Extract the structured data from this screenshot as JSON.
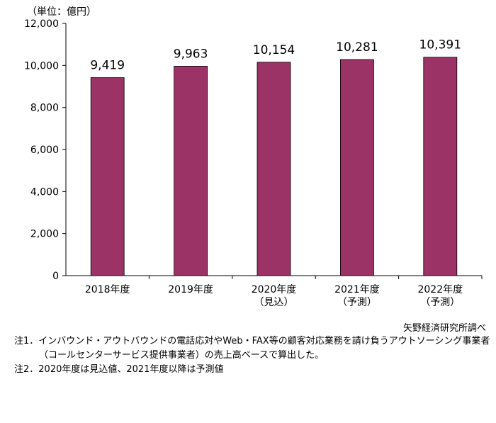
{
  "chart_data": {
    "type": "bar",
    "unit_label": "（単位：億円）",
    "categories": [
      [
        "2018年度"
      ],
      [
        "2019年度"
      ],
      [
        "2020年度",
        "（見込）"
      ],
      [
        "2021年度",
        "（予測）"
      ],
      [
        "2022年度",
        "（予測）"
      ]
    ],
    "values": [
      9419,
      9963,
      10154,
      10281,
      10391
    ],
    "value_labels": [
      "9,419",
      "9,963",
      "10,154",
      "10,281",
      "10,391"
    ],
    "ylim": [
      0,
      12000
    ],
    "yticks": [
      0,
      2000,
      4000,
      6000,
      8000,
      10000,
      12000
    ],
    "ytick_labels": [
      "0",
      "2,000",
      "4,000",
      "6,000",
      "8,000",
      "10,000",
      "12,000"
    ],
    "grid": false,
    "bar_color": "#9b3366",
    "source": "矢野経済研究所調べ"
  },
  "notes": [
    "注1．インバウンド・アウトバウンドの電話応対やWeb・FAX等の顧客対応業務を請け負うアウトソーシング事業者",
    "（コールセンターサービス提供事業者）の売上高ベースで算出した。",
    "注2．2020年度は見込値、2021年度以降は予測値"
  ]
}
